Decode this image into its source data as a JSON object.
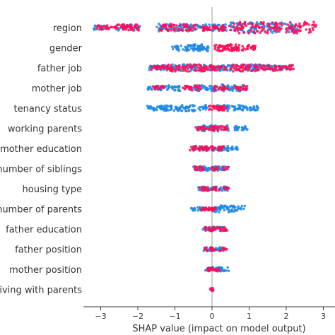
{
  "chart_data": {
    "type": "scatter",
    "subtype": "shap-beeswarm",
    "xlabel": "SHAP value (impact on model output)",
    "xlim": [
      -3.35,
      3.1
    ],
    "xticks": [
      -3,
      -2,
      -1,
      0,
      1,
      2,
      3
    ],
    "xtick_labels": [
      "−3",
      "−2",
      "−1",
      "0",
      "1",
      "2",
      "3"
    ],
    "colors": {
      "low": "#1e88e5",
      "high": "#ff0d57",
      "axis": "#333333",
      "zero_line": "#999999"
    },
    "features": [
      {
        "label": "region",
        "low": [
          [
            -3.2,
            -2.9
          ],
          [
            -2.6,
            -1.9
          ],
          [
            -1.5,
            -0.4
          ],
          [
            -0.4,
            0.4
          ],
          [
            0.5,
            2.3
          ]
        ],
        "high": [
          [
            -3.1,
            -2.7
          ],
          [
            -2.7,
            -1.9
          ],
          [
            -1.4,
            -0.4
          ],
          [
            -0.3,
            0.5
          ],
          [
            0.6,
            2.8
          ]
        ]
      },
      {
        "label": "gender",
        "low": [
          [
            -1.1,
            -0.9
          ],
          [
            -0.95,
            -0.05
          ],
          [
            -0.6,
            -0.2
          ]
        ],
        "high": [
          [
            0.05,
            1.0
          ],
          [
            0.2,
            0.7
          ],
          [
            0.9,
            1.2
          ]
        ]
      },
      {
        "label": "father job",
        "low": [
          [
            -1.7,
            -1.2
          ],
          [
            -1.3,
            -0.3
          ],
          [
            -0.3,
            0.4
          ],
          [
            0.4,
            1.4
          ],
          [
            1.4,
            2.1
          ]
        ],
        "high": [
          [
            -1.65,
            -1.1
          ],
          [
            -1.2,
            -0.2
          ],
          [
            -0.2,
            0.4
          ],
          [
            0.5,
            1.5
          ],
          [
            1.5,
            2.2
          ]
        ]
      },
      {
        "label": "mother job",
        "low": [
          [
            -1.75,
            -1.4
          ],
          [
            -1.4,
            -0.8
          ],
          [
            -0.6,
            0.05
          ],
          [
            0.0,
            0.9
          ]
        ],
        "high": [
          [
            -1.6,
            -1.3
          ],
          [
            -0.8,
            -0.3
          ],
          [
            0.05,
            0.45
          ],
          [
            0.6,
            0.95
          ]
        ]
      },
      {
        "label": "tenancy status",
        "low": [
          [
            -1.75,
            -1.2
          ],
          [
            -1.4,
            -0.9
          ],
          [
            -0.9,
            -0.1
          ],
          [
            0.1,
            0.9
          ],
          [
            0.9,
            1.25
          ]
        ],
        "high": [
          [
            -0.1,
            0.35
          ],
          [
            0.1,
            0.4
          ]
        ]
      },
      {
        "label": "working parents",
        "low": [
          [
            -0.4,
            -0.15
          ],
          [
            -0.3,
            0.45
          ],
          [
            0.6,
            0.9
          ],
          [
            0.8,
            0.95
          ]
        ],
        "high": [
          [
            -0.45,
            -0.15
          ],
          [
            -0.1,
            0.3
          ],
          [
            0.3,
            0.45
          ]
        ]
      },
      {
        "label": "mother education",
        "low": [
          [
            -0.55,
            -0.1
          ],
          [
            0.0,
            0.5
          ],
          [
            0.5,
            0.7
          ]
        ],
        "high": [
          [
            -0.6,
            -0.1
          ],
          [
            -0.2,
            0.1
          ],
          [
            0.1,
            0.35
          ]
        ]
      },
      {
        "label": "number of siblings",
        "low": [
          [
            -0.5,
            -0.15
          ],
          [
            -0.2,
            0.2
          ],
          [
            0.15,
            0.45
          ]
        ],
        "high": [
          [
            -0.5,
            -0.2
          ],
          [
            -0.05,
            0.15
          ],
          [
            0.3,
            0.45
          ]
        ]
      },
      {
        "label": "housing type",
        "low": [
          [
            -0.4,
            -0.1
          ],
          [
            -0.1,
            0.1
          ],
          [
            0.1,
            0.45
          ]
        ],
        "high": [
          [
            -0.35,
            -0.05
          ],
          [
            0.0,
            0.2
          ],
          [
            0.3,
            0.45
          ]
        ]
      },
      {
        "label": "number of parents",
        "low": [
          [
            -0.6,
            -0.45
          ],
          [
            -0.4,
            -0.2
          ],
          [
            0.0,
            0.9
          ],
          [
            0.05,
            0.2
          ]
        ],
        "high": [
          [
            -0.3,
            -0.1
          ],
          [
            -0.15,
            0.05
          ],
          [
            -0.1,
            0.1
          ]
        ]
      },
      {
        "label": "father education",
        "low": [
          [
            -0.25,
            0.0
          ],
          [
            0.0,
            0.3
          ],
          [
            0.2,
            0.4
          ]
        ],
        "high": [
          [
            -0.2,
            0.05
          ],
          [
            0.0,
            0.25
          ],
          [
            0.3,
            0.45
          ]
        ]
      },
      {
        "label": "father position",
        "low": [
          [
            -0.25,
            -0.05
          ],
          [
            -0.05,
            0.2
          ],
          [
            0.1,
            0.3
          ]
        ],
        "high": [
          [
            -0.2,
            0.0
          ],
          [
            0.0,
            0.1
          ],
          [
            0.2,
            0.4
          ]
        ]
      },
      {
        "label": "mother position",
        "low": [
          [
            -0.2,
            0.0
          ],
          [
            0.0,
            0.3
          ],
          [
            0.1,
            0.45
          ]
        ],
        "high": [
          [
            -0.15,
            0.05
          ],
          [
            -0.05,
            0.1
          ],
          [
            0.1,
            0.2
          ]
        ]
      },
      {
        "label": "living with parents",
        "low": [
          [
            0.0,
            0.03
          ]
        ],
        "high": [
          [
            -0.05,
            0.05
          ],
          [
            0.0,
            0.02
          ]
        ]
      }
    ]
  }
}
